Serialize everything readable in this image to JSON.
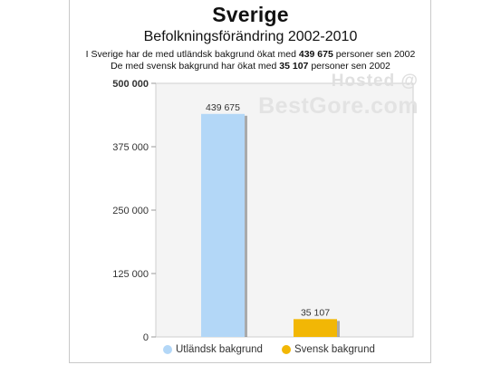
{
  "header": {
    "title": "Sverige",
    "subtitle": "Befolkningsförändring 2002-2010",
    "note1": {
      "pre": "I Sverige har de med utländsk bakgrund ökat med",
      "value": "439 675",
      "post": "personer sen 2002"
    },
    "note2": {
      "pre": "De med svensk bakgrund har ökat med",
      "value": "35 107",
      "post": "personer sen 2002"
    }
  },
  "watermark": {
    "line1": "Hosted @",
    "line2": "BestGore.com"
  },
  "chart_data": {
    "type": "bar",
    "title": "Sverige",
    "subtitle": "Befolkningsförändring 2002-2010",
    "categories": [
      "Utländsk bakgrund",
      "Svensk bakgrund"
    ],
    "values": [
      439675,
      35107
    ],
    "data_labels": [
      "439 675",
      "35 107"
    ],
    "colors": [
      "#b3d7f7",
      "#f2b705"
    ],
    "ylim": [
      0,
      500000
    ],
    "yticks": [
      0,
      125000,
      250000,
      375000,
      500000
    ],
    "ytick_labels": [
      "0",
      "125 000",
      "250 000",
      "375 000",
      "500 000"
    ],
    "grid": false,
    "legend": "bottom",
    "legend_entries": [
      "Utländsk bakgrund",
      "Svensk bakgrund"
    ]
  }
}
